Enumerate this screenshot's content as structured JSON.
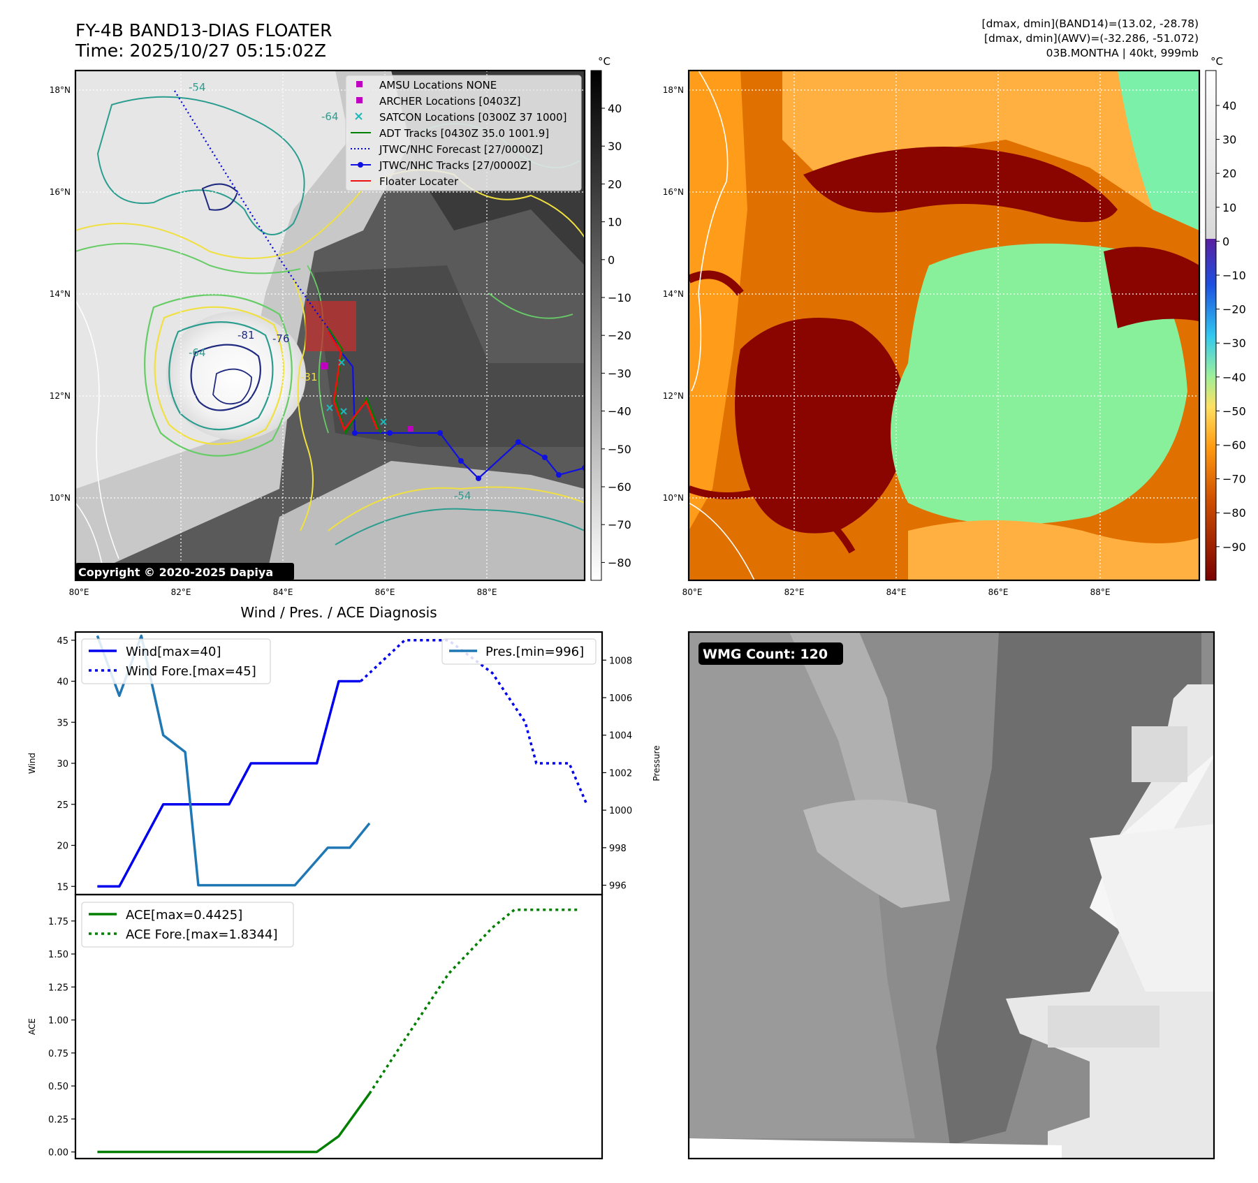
{
  "header": {
    "title_line1": "FY-4B BAND13-DIAS FLOATER",
    "title_line2": "Time: 2025/10/27 05:15:02Z",
    "info_line1": "[dmax, dmin](BAND14)=(13.02, -28.78)",
    "info_line2": "[dmax, dmin](AWV)=(-32.286, -51.072)",
    "info_line3": "03B.MONTHA | 40kt, 999mb"
  },
  "map_left": {
    "copyright": "Copyright © 2020-2025 Dapiya",
    "lat_labels": [
      "18°N",
      "16°N",
      "14°N",
      "12°N",
      "10°N"
    ],
    "lon_labels": [
      "80°E",
      "82°E",
      "84°E",
      "86°E",
      "88°E"
    ],
    "contour_labels": [
      "-54",
      "-64",
      "-31",
      "-76",
      "-81"
    ],
    "colorbar": {
      "unit": "°C",
      "ticks": [
        "40",
        "30",
        "20",
        "10",
        "0",
        "−10",
        "−20",
        "−30",
        "−40",
        "−50",
        "−60",
        "−70",
        "−80"
      ]
    },
    "legend": [
      {
        "label": "AMSU Locations NONE",
        "color": "#c000c0",
        "marker": "square"
      },
      {
        "label": "ARCHER Locations [0403Z]",
        "color": "#c000c0",
        "marker": "square"
      },
      {
        "label": "SATCON Locations [0300Z 37 1000]",
        "color": "#1fb8b8",
        "marker": "x"
      },
      {
        "label": "ADT Tracks [0430Z 35.0 1001.9]",
        "color": "#007f00",
        "marker": "line"
      },
      {
        "label": "JTWC/NHC Forecast [27/0000Z]",
        "color": "#0000dd",
        "marker": "dotted"
      },
      {
        "label": "JTWC/NHC Tracks [27/0000Z]",
        "color": "#1010e0",
        "marker": "line-dot"
      },
      {
        "label": "Floater Locater",
        "color": "#ee1111",
        "marker": "line"
      }
    ]
  },
  "map_right": {
    "lat_labels": [
      "18°N",
      "16°N",
      "14°N",
      "12°N",
      "10°N"
    ],
    "lon_labels": [
      "80°E",
      "82°E",
      "84°E",
      "86°E",
      "88°E"
    ],
    "colorbar": {
      "unit": "°C",
      "ticks": [
        "40",
        "30",
        "20",
        "10",
        "0",
        "−10",
        "−20",
        "−30",
        "−40",
        "−50",
        "−60",
        "−70",
        "−80",
        "−90"
      ]
    }
  },
  "wmg": {
    "label": "WMG Count: 120"
  },
  "chart_data": [
    {
      "type": "line",
      "title": "Wind / Pres. / ACE Diagnosis",
      "ylabel": "Wind",
      "ylim": [
        14,
        46
      ],
      "yticks": [
        "15",
        "20",
        "25",
        "30",
        "35",
        "40",
        "45"
      ],
      "xlim": [
        0,
        24
      ],
      "series": [
        {
          "name": "Wind[max=40]",
          "style": "solid",
          "color": "#0000ee",
          "x": [
            1,
            2,
            4,
            7,
            8,
            11,
            12,
            13
          ],
          "y": [
            15,
            15,
            25,
            25,
            30,
            30,
            40,
            40
          ]
        },
        {
          "name": "Wind Fore.[max=45]",
          "style": "dotted",
          "color": "#0000ee",
          "x": [
            13,
            15,
            17,
            19,
            20,
            20.5,
            21,
            22.5,
            23.3
          ],
          "y": [
            40,
            45,
            45,
            41,
            37,
            35,
            30,
            30,
            25
          ]
        }
      ]
    },
    {
      "type": "line",
      "ylabel": "Pressure",
      "ylim": [
        995.5,
        1009.5
      ],
      "yticks": [
        "996",
        "998",
        "1000",
        "1002",
        "1004",
        "1006",
        "1008"
      ],
      "xlim": [
        0,
        24
      ],
      "series": [
        {
          "name": "Pres.[min=996]",
          "style": "solid",
          "color": "#1f77b4",
          "x": [
            1,
            2,
            3,
            4,
            5,
            5.6,
            10,
            11.5,
            12.5,
            13.4
          ],
          "y": [
            1009.3,
            1006.1,
            1009.3,
            1004.0,
            1003.1,
            996.0,
            996.0,
            998.0,
            998.0,
            999.3
          ]
        }
      ]
    },
    {
      "type": "line",
      "ylabel": "ACE",
      "ylim": [
        -0.05,
        1.95
      ],
      "yticks": [
        "0.00",
        "0.25",
        "0.50",
        "0.75",
        "1.00",
        "1.25",
        "1.50",
        "1.75"
      ],
      "xlim": [
        0,
        24
      ],
      "series": [
        {
          "name": "ACE[max=0.4425]",
          "style": "solid",
          "color": "#007f00",
          "x": [
            1,
            11,
            12,
            13.4
          ],
          "y": [
            0,
            0,
            0.12,
            0.4425
          ]
        },
        {
          "name": "ACE Fore.[max=1.8344]",
          "style": "dotted",
          "color": "#007f00",
          "x": [
            13.4,
            15,
            17,
            19,
            20,
            23
          ],
          "y": [
            0.4425,
            0.85,
            1.35,
            1.7,
            1.8344,
            1.8344
          ]
        }
      ]
    }
  ]
}
